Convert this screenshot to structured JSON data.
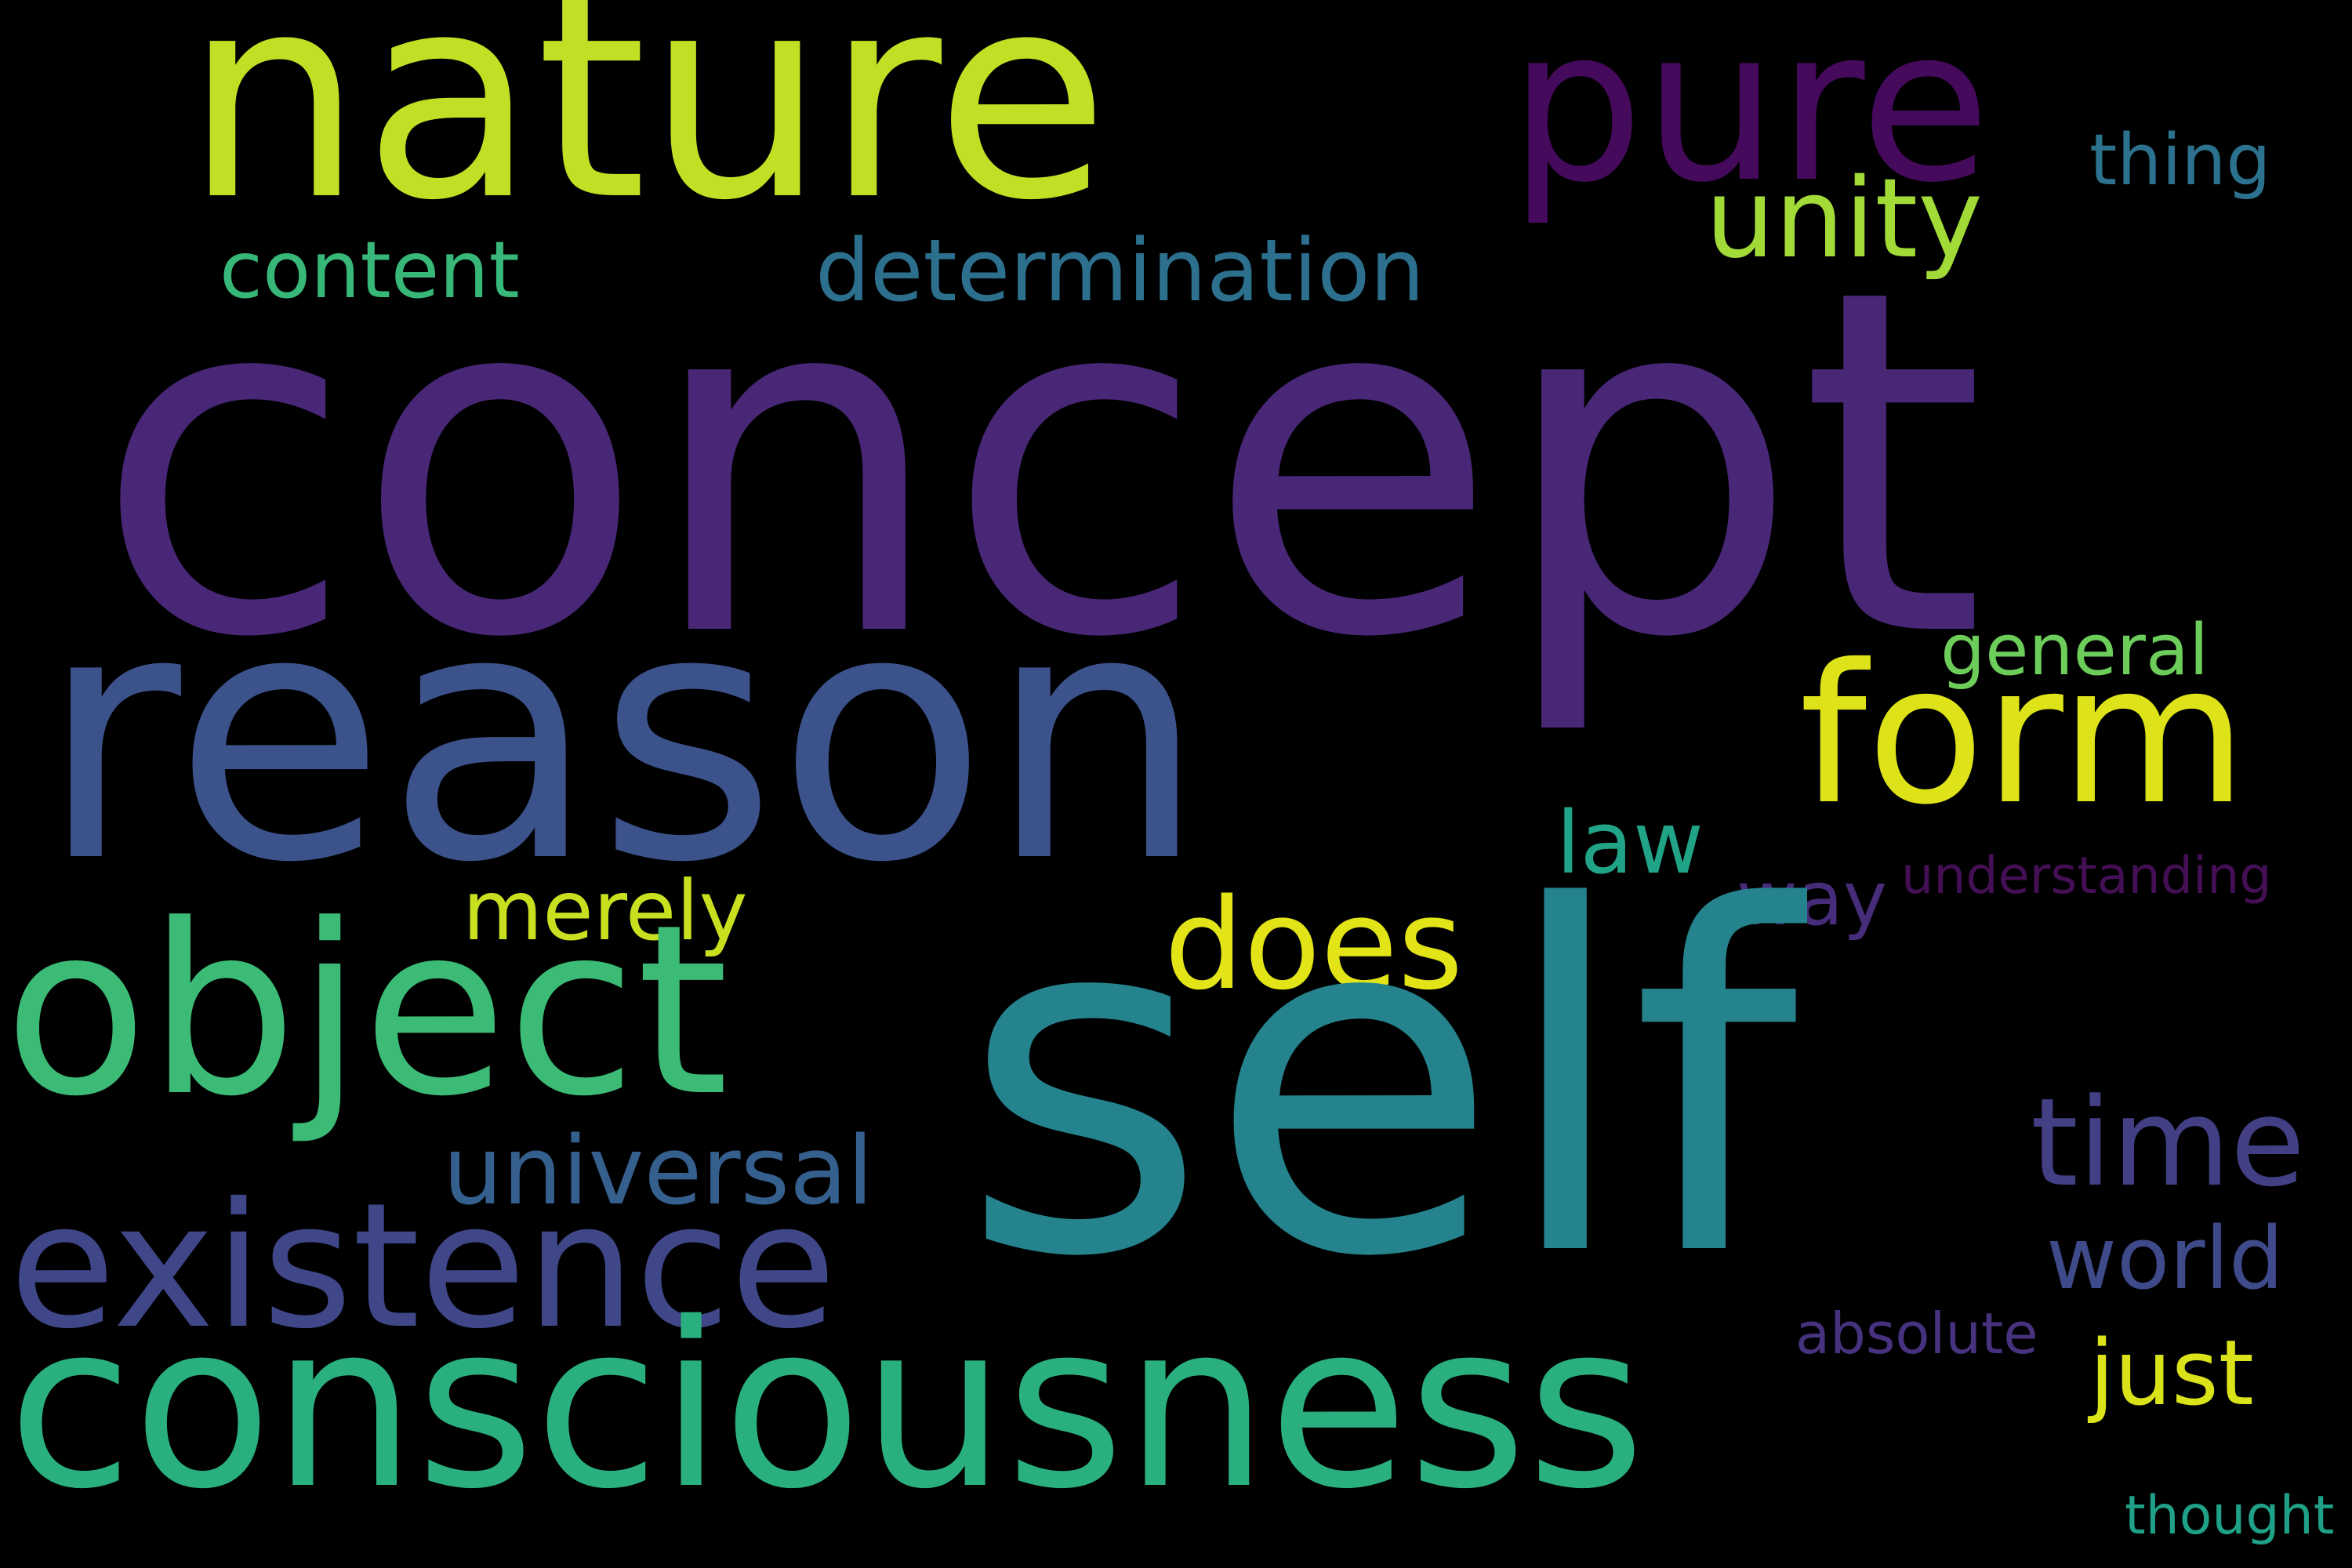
{
  "wordcloud": {
    "background": "#000000",
    "words": {
      "concept": {
        "text": "concept",
        "color": "#482776"
      },
      "self": {
        "text": "self",
        "color": "#25838e"
      },
      "reason": {
        "text": "reason",
        "color": "#3b528b"
      },
      "nature": {
        "text": "nature",
        "color": "#c0df25"
      },
      "consciousness": {
        "text": "consciousness",
        "color": "#2ab07f"
      },
      "object": {
        "text": "object",
        "color": "#3bbb75"
      },
      "existence": {
        "text": "existence",
        "color": "#3f4788"
      },
      "pure": {
        "text": "pure",
        "color": "#450a5c"
      },
      "form": {
        "text": "form",
        "color": "#dde318"
      },
      "does": {
        "text": "does",
        "color": "#e2e418"
      },
      "unity": {
        "text": "unity",
        "color": "#a2da37"
      },
      "time": {
        "text": "time",
        "color": "#423f85"
      },
      "universal": {
        "text": "universal",
        "color": "#355f8d"
      },
      "determination": {
        "text": "determination",
        "color": "#2d708e"
      },
      "world": {
        "text": "world",
        "color": "#3e4a89"
      },
      "just": {
        "text": "just",
        "color": "#dae319"
      },
      "merely": {
        "text": "merely",
        "color": "#c8e020"
      },
      "content": {
        "text": "content",
        "color": "#37b878"
      },
      "law": {
        "text": "law",
        "color": "#20a386"
      },
      "general": {
        "text": "general",
        "color": "#6ccd5a"
      },
      "thing": {
        "text": "thing",
        "color": "#2c728e"
      },
      "way": {
        "text": "way",
        "color": "#472c7a"
      },
      "understanding": {
        "text": "understanding",
        "color": "#440f54"
      },
      "absolute": {
        "text": "absolute",
        "color": "#46327e"
      },
      "thought": {
        "text": "thought",
        "color": "#1fa187"
      }
    }
  }
}
